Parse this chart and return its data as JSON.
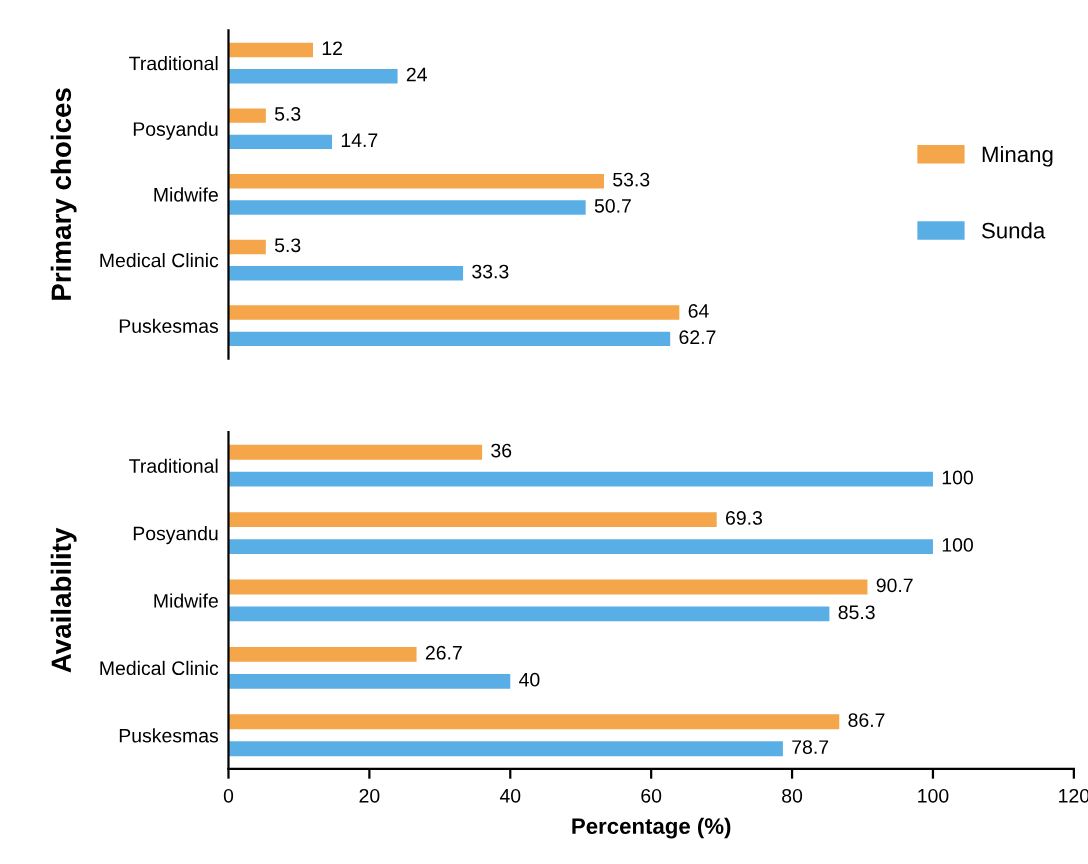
{
  "chart_data": [
    {
      "type": "bar",
      "orientation": "horizontal",
      "ylabel": "Primary choices",
      "categories": [
        "Traditional",
        "Posyandu",
        "Midwife",
        "Medical Clinic",
        "Puskesmas"
      ],
      "xlim": [
        0,
        120
      ],
      "tick_labels": "y",
      "data_labels": true,
      "legend": "right",
      "series": [
        {
          "name": "Minang",
          "color": "#f5a54a",
          "values": [
            12,
            5.3,
            53.3,
            5.3,
            64
          ]
        },
        {
          "name": "Sunda",
          "color": "#5aaee6",
          "values": [
            24,
            14.7,
            50.7,
            33.3,
            62.7
          ]
        }
      ]
    },
    {
      "type": "bar",
      "orientation": "horizontal",
      "ylabel": "Availability",
      "xlabel": "Percentage (%)",
      "categories": [
        "Traditional",
        "Posyandu",
        "Midwife",
        "Medical Clinic",
        "Puskesmas"
      ],
      "xlim": [
        0,
        120
      ],
      "xticks": [
        0,
        20,
        40,
        60,
        80,
        100,
        120
      ],
      "data_labels": true,
      "series": [
        {
          "color": "#f5a54a",
          "values": [
            36,
            69.3,
            90.7,
            26.7,
            86.7
          ]
        },
        {
          "color": "#5aaee6",
          "values": [
            100,
            100,
            85.3,
            40,
            78.7
          ]
        }
      ]
    }
  ]
}
